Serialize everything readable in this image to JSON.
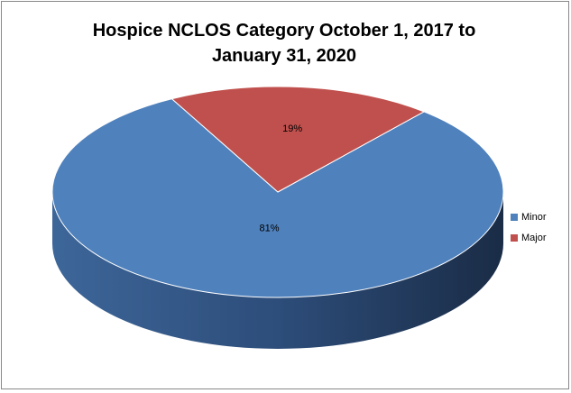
{
  "chart_data": {
    "type": "pie",
    "title": "Hospice NCLOS Category October 1, 2017 to January 31, 2020",
    "categories": [
      "Minor",
      "Major"
    ],
    "values": [
      81,
      19
    ],
    "value_labels": [
      "81%",
      "19%"
    ],
    "colors": [
      "#4f81bd",
      "#c0504d"
    ],
    "legend": "right"
  }
}
